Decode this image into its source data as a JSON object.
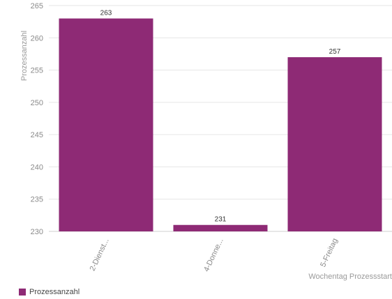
{
  "chart_data": {
    "type": "bar",
    "categories": [
      "2-Dienst...",
      "4-Donne...",
      "5-Freitag"
    ],
    "series": [
      {
        "name": "Prozessanzahl",
        "values": [
          263,
          231,
          257
        ]
      }
    ],
    "data_labels": [
      "263",
      "231",
      "257"
    ],
    "ylim": [
      230,
      265
    ],
    "yticks": [
      230,
      235,
      240,
      245,
      250,
      255,
      260,
      265
    ],
    "ylabel": "Prozessanzahl",
    "xlabel": "Wochentag Prozessstart",
    "grid": true,
    "legend_position": "bottom-left",
    "bar_color": "#8e2a75"
  }
}
